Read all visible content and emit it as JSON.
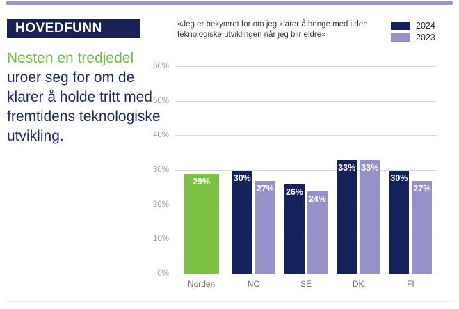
{
  "palette": {
    "navy": "#14215A",
    "purple": "#9791C9",
    "green_bar": "#7CC142",
    "green_text": "#6EBE45",
    "navy_text": "#1F2A5E",
    "title_box_bg": "#1A2157",
    "accent_bar": "#9B97CB"
  },
  "header": {
    "title": "HOVEDFUNN"
  },
  "summary": {
    "lead": "Nesten en tredjedel",
    "rest": "uroer seg for om de klarer å holde tritt med fremtidens teknologiske utvikling."
  },
  "chart_data": {
    "type": "bar",
    "title": "«Jeg er bekymret for om jeg klarer å henge med i den teknologiske utviklingen når jeg blir eldre»",
    "categories": [
      "Norden",
      "NO",
      "SE",
      "DK",
      "FI"
    ],
    "series": [
      {
        "name": "2024",
        "color": "#14215A",
        "values": [
          null,
          30,
          26,
          33,
          30
        ]
      },
      {
        "name": "2023",
        "color": "#9791C9",
        "values": [
          null,
          27,
          24,
          33,
          27
        ]
      }
    ],
    "highlight_bar": {
      "category": "Norden",
      "value": 29,
      "color": "#7CC142"
    },
    "value_suffix": "%",
    "y_ticks": [
      "0%",
      "10%",
      "20%",
      "30%",
      "40%",
      "50%",
      "60%"
    ],
    "ylim": [
      0,
      60
    ],
    "grid": true,
    "legend_position": "top-right"
  }
}
